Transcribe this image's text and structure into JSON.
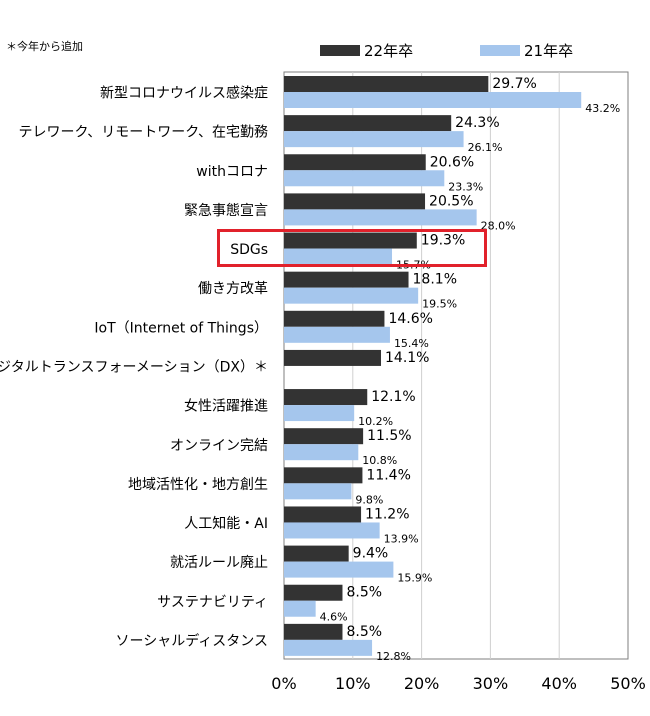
{
  "note": "＊今年から追加",
  "colors": {
    "series_2022": "#333333",
    "series_2021": "#a5c6ed",
    "highlight": "#e1212b"
  },
  "chart_data": {
    "type": "bar",
    "orientation": "horizontal",
    "categories": [
      "新型コロナウイルス感染症",
      "テレワーク、リモートワーク、在宅勤務",
      "withコロナ",
      "緊急事態宣言",
      "SDGs",
      "働き方改革",
      "IoT（Internet of Things）",
      "デジタルトランスフォーメーション（DX）＊",
      "女性活躍推進",
      "オンライン完結",
      "地域活性化・地方創生",
      "人工知能・AI",
      "就活ルール廃止",
      "サステナビリティ",
      "ソーシャルディスタンス"
    ],
    "series": [
      {
        "name": "22年卒",
        "values": [
          29.7,
          24.3,
          20.6,
          20.5,
          19.3,
          18.1,
          14.6,
          14.1,
          12.1,
          11.5,
          11.4,
          11.2,
          9.4,
          8.5,
          8.5
        ],
        "labels": [
          "29.7%",
          "24.3%",
          "20.6%",
          "20.5%",
          "19.3%",
          "18.1%",
          "14.6%",
          "14.1%",
          "12.1%",
          "11.5%",
          "11.4%",
          "11.2%",
          "9.4%",
          "8.5%",
          "8.5%"
        ]
      },
      {
        "name": "21年卒",
        "values": [
          43.2,
          26.1,
          23.3,
          28.0,
          15.7,
          19.5,
          15.4,
          null,
          10.2,
          10.8,
          9.8,
          13.9,
          15.9,
          4.6,
          12.8
        ],
        "labels": [
          "43.2%",
          "26.1%",
          "23.3%",
          "28.0%",
          "15.7%",
          "19.5%",
          "15.4%",
          "",
          "10.2%",
          "10.8%",
          "9.8%",
          "13.9%",
          "15.9%",
          "4.6%",
          "12.8%"
        ]
      }
    ],
    "xlim": [
      0,
      50
    ],
    "xticks": [
      0,
      10,
      20,
      30,
      40,
      50
    ],
    "xtick_labels": [
      "0%",
      "10%",
      "20%",
      "30%",
      "40%",
      "50%"
    ],
    "grid": "vertical",
    "legend": "top",
    "highlighted_category": "SDGs"
  }
}
